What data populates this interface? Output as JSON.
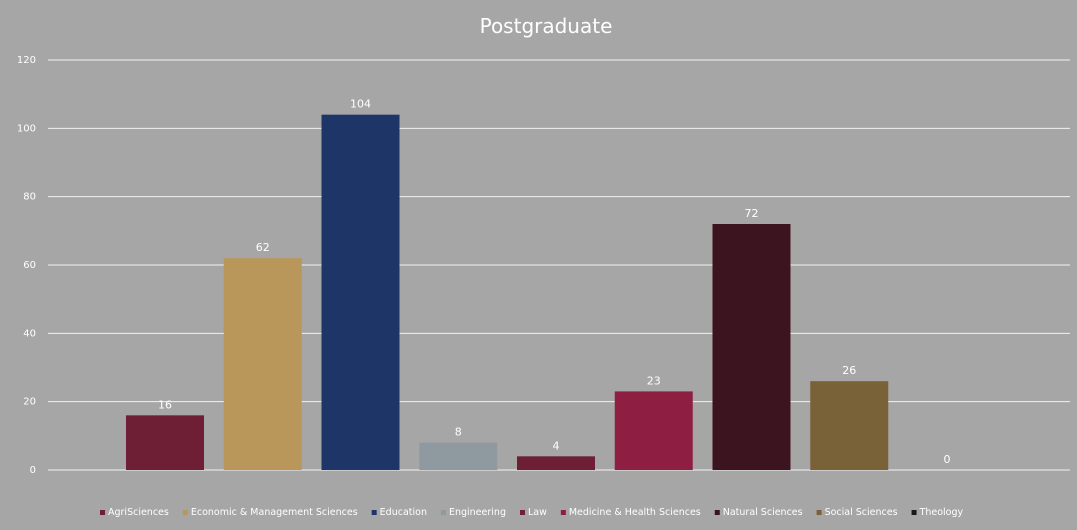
{
  "chart_data": {
    "type": "bar",
    "title": "Postgraduate",
    "xlabel": "",
    "ylabel": "",
    "ylim": [
      0,
      120
    ],
    "yticks": [
      0,
      20,
      40,
      60,
      80,
      100,
      120
    ],
    "grid": true,
    "legend_position": "bottom",
    "categories": [
      "AgriSciences",
      "Economic & Management Sciences",
      "Education",
      "Engineering",
      "Law",
      "Medicine & Health Sciences",
      "Natural Sciences",
      "Social Sciences",
      "Theology"
    ],
    "values": [
      16,
      62,
      104,
      8,
      4,
      23,
      72,
      26,
      0
    ],
    "colors": [
      "#6e1f35",
      "#b9975b",
      "#1e3567",
      "#8f9aa0",
      "#6e1f35",
      "#8e1e42",
      "#3c1420",
      "#7a6238",
      "#1a1a1a"
    ]
  }
}
